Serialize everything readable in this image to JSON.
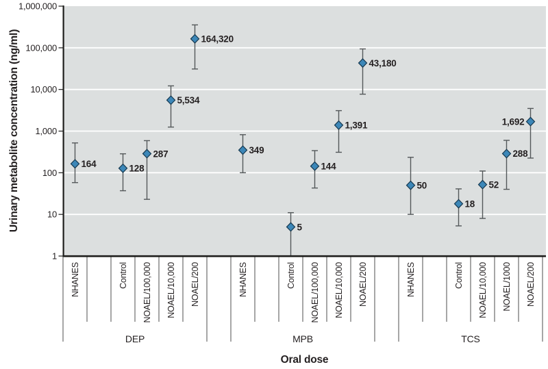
{
  "chart_data": {
    "type": "scatter",
    "title": "",
    "xlabel": "Oral dose",
    "ylabel": "Urinary metabolite concentration (ng/ml)",
    "yscale": "log",
    "ylim": [
      1,
      1000000
    ],
    "ytick_labels": [
      "1",
      "10",
      "100",
      "1,000",
      "10,000",
      "100,000",
      "1,000,000"
    ],
    "grid": "white horizontal gridlines at each log decade",
    "legend": "none",
    "marker": "diamond",
    "colors": {
      "marker_fill": "#3c87b8",
      "marker_stroke": "#16384f",
      "error_bar": "#54585a",
      "plot_bg": "#dcdfdf",
      "gridline": "#ffffff",
      "axis": "#1d1d1b",
      "tick_line": "#4c4c4c",
      "text": "#231f20"
    },
    "groups": [
      {
        "name": "DEP",
        "points": [
          {
            "category": "NHANES",
            "value": 164,
            "label": "164",
            "err_lo": 58,
            "err_hi": 520
          },
          {
            "category": "Control",
            "value": 128,
            "label": "128",
            "err_lo": 37,
            "err_hi": 285
          },
          {
            "category": "NOAEL/100,000",
            "value": 287,
            "label": "287",
            "err_lo": 23,
            "err_hi": 590
          },
          {
            "category": "NOAEL/10,000",
            "value": 5534,
            "label": "5,534",
            "err_lo": 1250,
            "err_hi": 12200
          },
          {
            "category": "NOAEL/200",
            "value": 164320,
            "label": "164,320",
            "err_lo": 31000,
            "err_hi": 355000
          }
        ]
      },
      {
        "name": "MPB",
        "points": [
          {
            "category": "NHANES",
            "value": 349,
            "label": "349",
            "err_lo": 100,
            "err_hi": 820
          },
          {
            "category": "Control",
            "value": 5,
            "label": "5",
            "err_lo": 1,
            "err_hi": 11,
            "lo_cap": false
          },
          {
            "category": "NOAEL/100,000",
            "value": 144,
            "label": "144",
            "err_lo": 43,
            "err_hi": 340
          },
          {
            "category": "NOAEL/10,000",
            "value": 1391,
            "label": "1,391",
            "err_lo": 310,
            "err_hi": 3100
          },
          {
            "category": "NOAEL/200",
            "value": 43180,
            "label": "43,180",
            "err_lo": 7700,
            "err_hi": 94000
          }
        ]
      },
      {
        "name": "TCS",
        "points": [
          {
            "category": "NHANES",
            "value": 50,
            "label": "50",
            "err_lo": 10,
            "err_hi": 235
          },
          {
            "category": "Control",
            "value": 18,
            "label": "18",
            "err_lo": 5.3,
            "err_hi": 41
          },
          {
            "category": "NOAEL/10,000",
            "value": 52,
            "label": "52",
            "err_lo": 8,
            "err_hi": 110
          },
          {
            "category": "NOAEL/1000",
            "value": 288,
            "label": "288",
            "err_lo": 40,
            "err_hi": 600
          },
          {
            "category": "NOAEL/200",
            "value": 1692,
            "label": "1,692",
            "err_lo": 225,
            "err_hi": 3500,
            "label_side": "left"
          }
        ]
      }
    ]
  }
}
